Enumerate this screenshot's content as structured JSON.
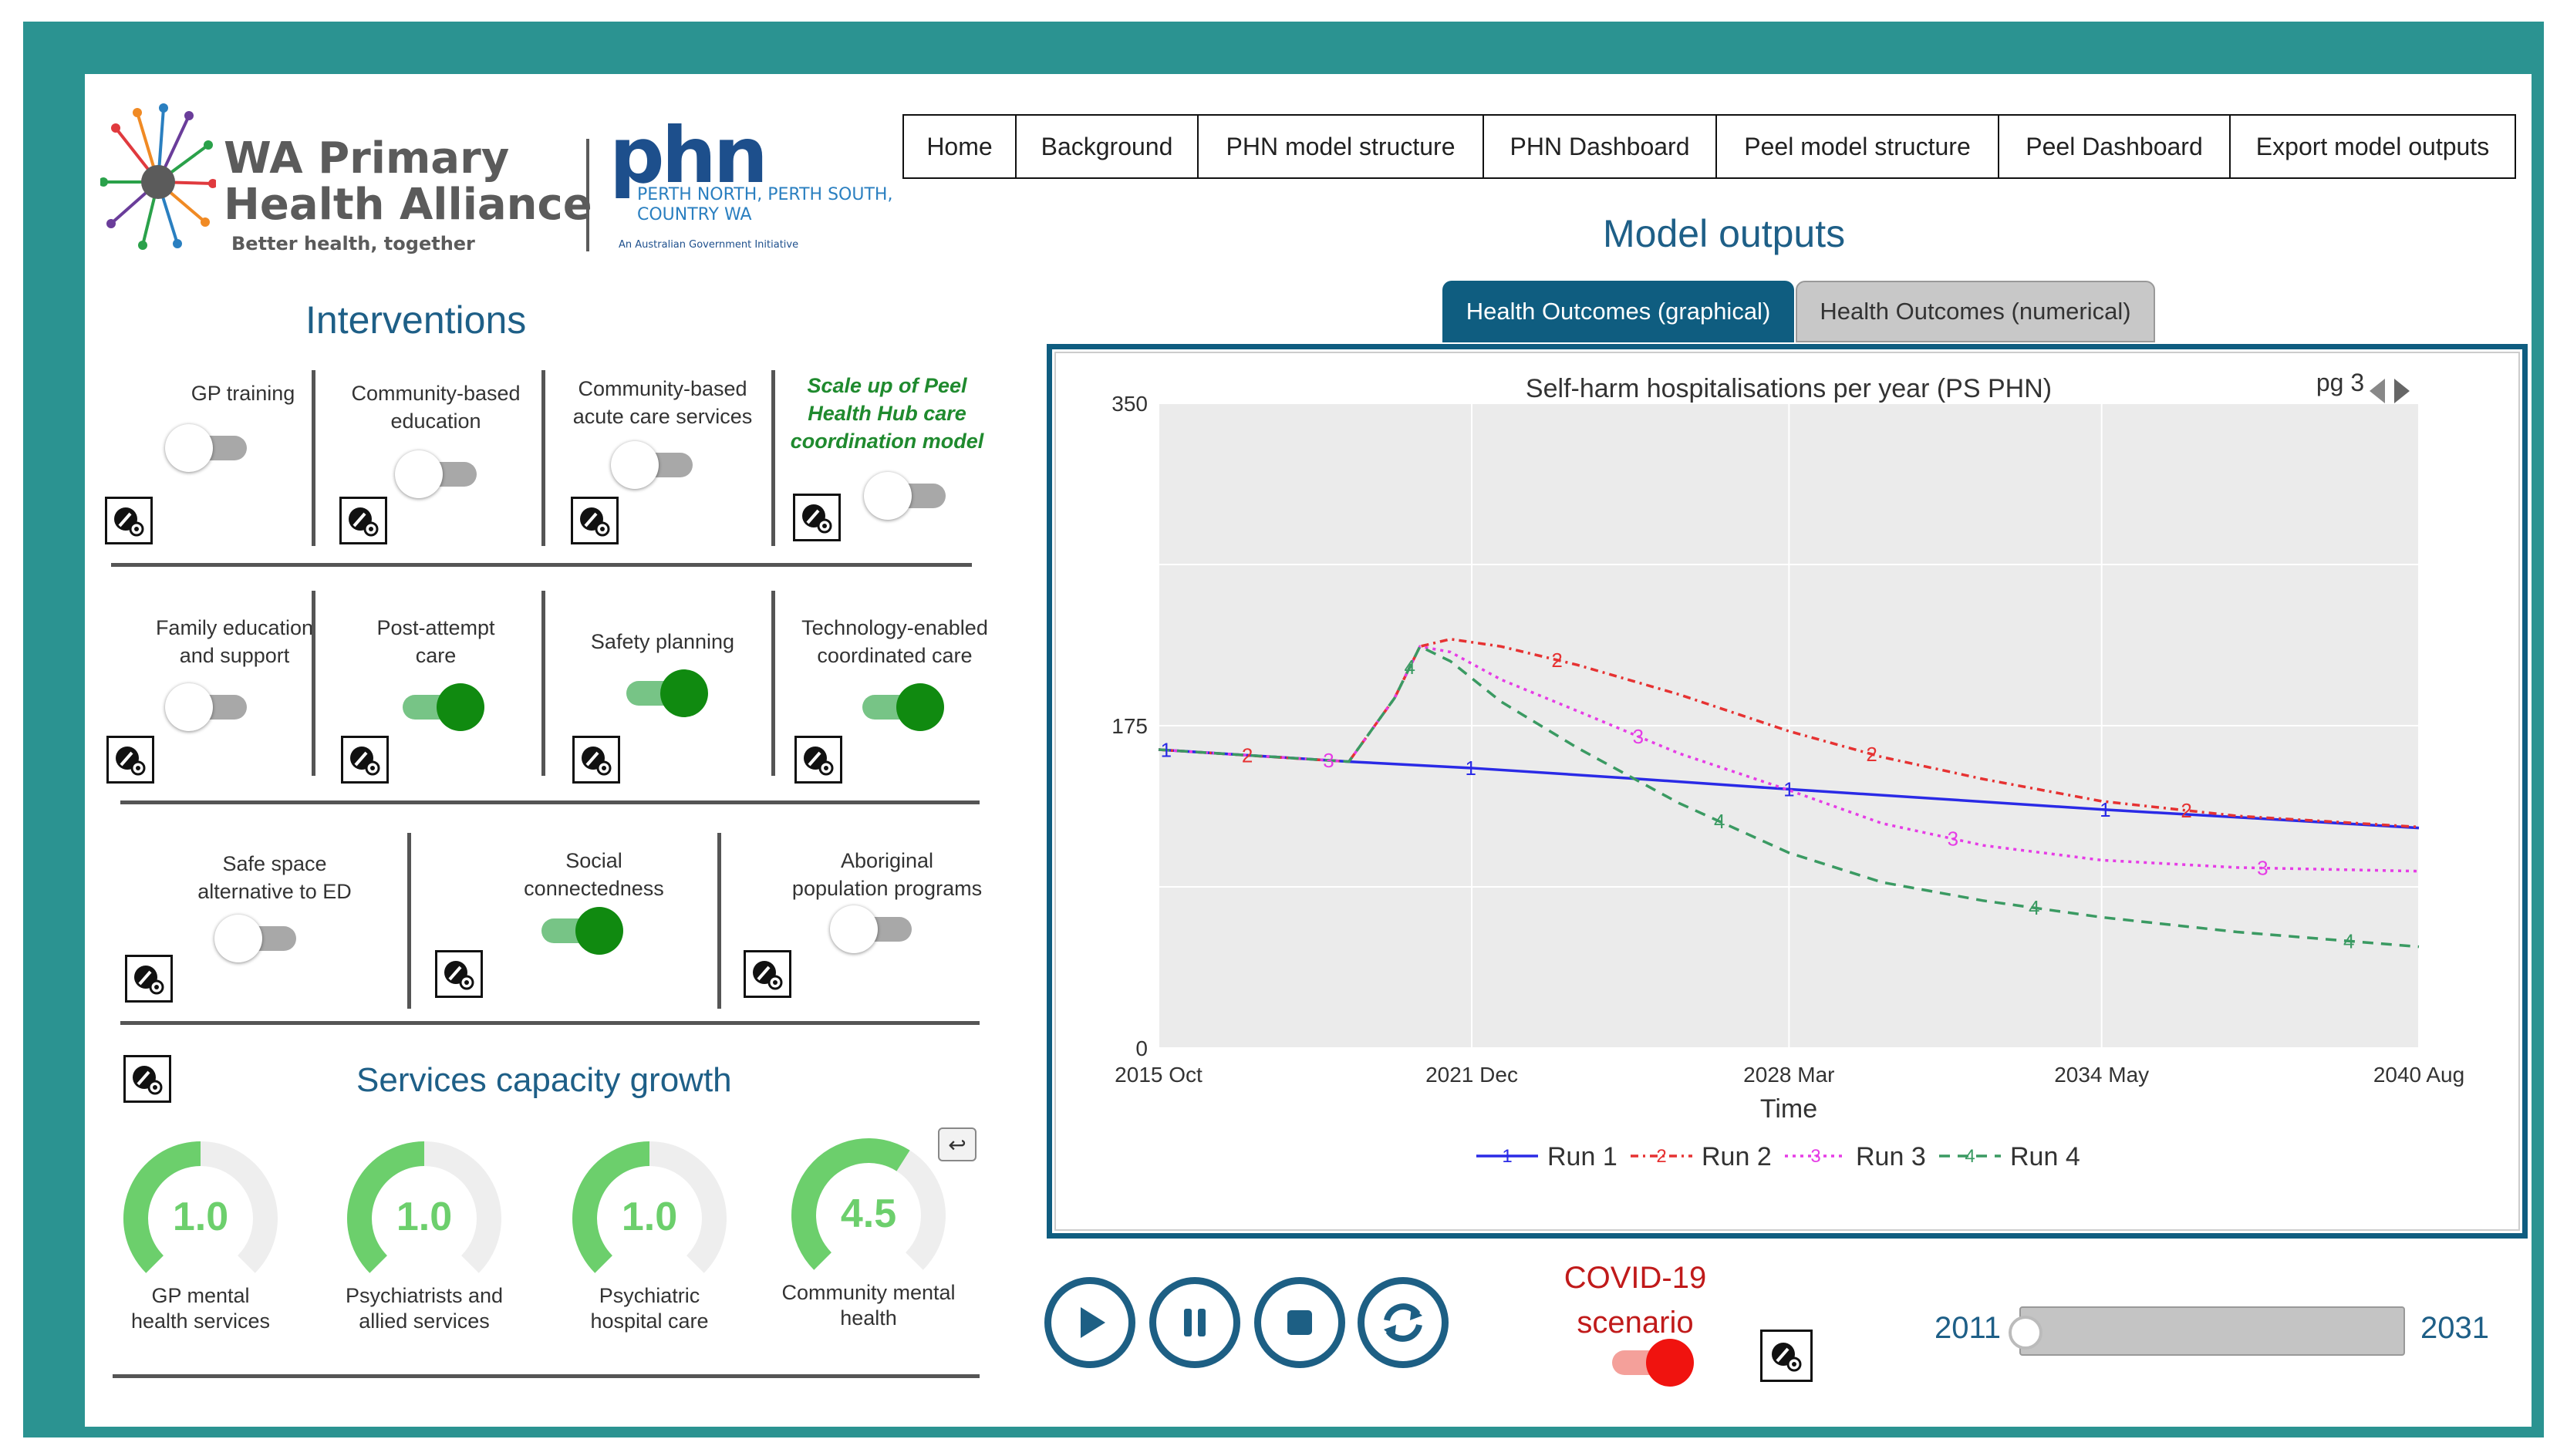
{
  "header": {
    "logo_title_line1": "WA Primary",
    "logo_title_line2": "Health Alliance",
    "logo_tagline": "Better health, together",
    "phn_logo": "phn",
    "phn_sub1": "PERTH NORTH, PERTH SOUTH,",
    "phn_sub2": "COUNTRY WA",
    "phn_gov": "An Australian Government Initiative"
  },
  "nav": [
    "Home",
    "Background",
    "PHN model structure",
    "PHN Dashboard",
    "Peel model structure",
    "Peel Dashboard",
    "Export model outputs"
  ],
  "interventions": {
    "title": "Interventions",
    "items": [
      {
        "label1": "GP training",
        "label2": "",
        "state": "off"
      },
      {
        "label1": "Community-based",
        "label2": "education",
        "state": "off"
      },
      {
        "label1": "Community-based",
        "label2": "acute care services",
        "state": "off"
      },
      {
        "label1": "Scale up of Peel",
        "label2": "Health Hub care",
        "label3": "coordination model",
        "state": "off"
      },
      {
        "label1": "Family education",
        "label2": "and support",
        "state": "off"
      },
      {
        "label1": "Post-attempt",
        "label2": "care",
        "state": "on"
      },
      {
        "label1": "Safety planning",
        "label2": "",
        "state": "on"
      },
      {
        "label1": "Technology-enabled",
        "label2": "coordinated care",
        "state": "on"
      },
      {
        "label1": "Safe space",
        "label2": "alternative to ED",
        "state": "off"
      },
      {
        "label1": "Social",
        "label2": "connectedness",
        "state": "on"
      },
      {
        "label1": "Aboriginal",
        "label2": "population programs",
        "state": "off"
      }
    ]
  },
  "capacity": {
    "title": "Services capacity growth",
    "undo_icon": "↩",
    "gauges": [
      {
        "value": "1.0",
        "fraction": 0.5,
        "label1": "GP mental",
        "label2": "health services"
      },
      {
        "value": "1.0",
        "fraction": 0.5,
        "label1": "Psychiatrists and",
        "label2": "allied services"
      },
      {
        "value": "1.0",
        "fraction": 0.5,
        "label1": "Psychiatric",
        "label2": "hospital care"
      },
      {
        "value": "4.5",
        "fraction": 0.62,
        "label1": "Community mental",
        "label2": "health"
      }
    ]
  },
  "outputs": {
    "title": "Model outputs",
    "tabs": [
      "Health Outcomes (graphical)",
      "Health Outcomes (numerical)"
    ],
    "active_tab": 0,
    "page_label": "pg 3"
  },
  "chart_data": {
    "type": "line",
    "title": "Self-harm hospitalisations per year (PS PHN)",
    "xlabel": "Time",
    "ylabel": "",
    "x_ticks": [
      "2015 Oct",
      "2021 Dec",
      "2028 Mar",
      "2034 May",
      "2040 Aug"
    ],
    "x_tick_values": [
      2015.75,
      2021.92,
      2028.17,
      2034.33,
      2040.58
    ],
    "xlim": [
      2015.75,
      2040.58
    ],
    "y_ticks": [
      "350",
      "175",
      "0"
    ],
    "ylim": [
      0,
      350
    ],
    "grid": true,
    "legend": "bottom",
    "series": [
      {
        "name": "Run 1",
        "marker": "1",
        "color": "#2a2ae6",
        "dash": "",
        "x": [
          2015.75,
          2019.5,
          2021.92,
          2025,
          2028.17,
          2031,
          2034.33,
          2037.5,
          2040.58
        ],
        "y": [
          162,
          155.5,
          152,
          146.5,
          140.5,
          135.5,
          129.5,
          124.5,
          119.5
        ]
      },
      {
        "name": "Run 2",
        "marker": "2",
        "color": "#e63232",
        "dash": "10,6,3,6",
        "x": [
          2015.75,
          2018,
          2019.5,
          2020.4,
          2020.9,
          2021.5,
          2022.5,
          2024,
          2026,
          2028.17,
          2030,
          2032,
          2034.33,
          2037,
          2040.58
        ],
        "y": [
          162,
          158,
          155.5,
          190,
          218,
          222,
          218,
          208,
          192,
          172,
          158,
          146,
          134,
          126,
          120
        ]
      },
      {
        "name": "Run 3",
        "marker": "3",
        "color": "#e63ce6",
        "dash": "4,6",
        "x": [
          2015.75,
          2019.5,
          2020.4,
          2020.9,
          2021.5,
          2022.5,
          2024,
          2026,
          2028.17,
          2030,
          2032,
          2034.33,
          2037,
          2040.58
        ],
        "y": [
          162,
          155.5,
          190,
          218,
          215,
          200,
          183,
          160,
          140,
          122,
          110,
          102,
          98,
          96
        ]
      },
      {
        "name": "Run 4",
        "marker": "4",
        "color": "#3a9a62",
        "dash": "14,10",
        "x": [
          2015.75,
          2019.5,
          2020.4,
          2020.9,
          2021.5,
          2022.5,
          2024,
          2026,
          2028.17,
          2030,
          2032,
          2034.33,
          2037,
          2040.58
        ],
        "y": [
          162,
          155.5,
          190,
          218,
          210,
          188,
          163,
          133,
          106,
          90,
          80,
          71,
          63,
          55
        ]
      }
    ],
    "marker_x": {
      "Run 1": [
        2015.9,
        2021.9,
        2028.17,
        2034.4
      ],
      "Run 2": [
        2017.5,
        2023.6,
        2029.8,
        2036.0
      ],
      "Run 3": [
        2019.1,
        2025.2,
        2031.4,
        2037.5
      ],
      "Run 4": [
        2020.7,
        2026.8,
        2033.0,
        2039.2
      ]
    }
  },
  "controls": {
    "play_icon": "play-icon",
    "pause_icon": "pause-icon",
    "stop_icon": "stop-icon",
    "reset_icon": "reset-icon",
    "covid_line1": "COVID-19",
    "covid_line2": "scenario",
    "covid_state": "on",
    "year_start": "2011",
    "year_end": "2031",
    "year_slider_fraction": 0.0
  },
  "colors": {
    "frame": "#2b9391",
    "title_blue": "#1e5f87",
    "toggle_on": "#108a10",
    "gauge": "#6ccf6c"
  }
}
